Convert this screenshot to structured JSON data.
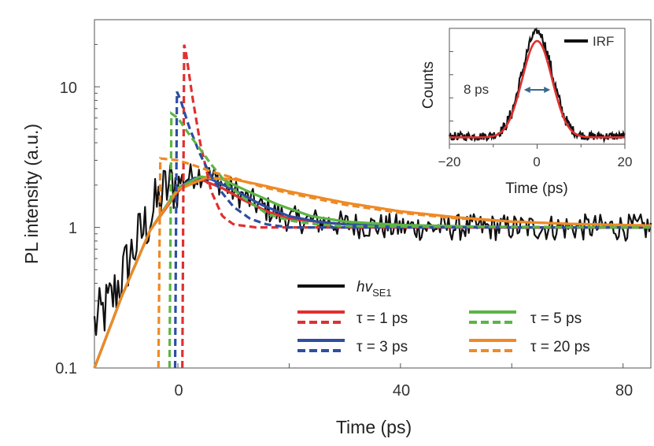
{
  "chart_data": [
    {
      "type": "line",
      "xlabel": "Time (ps)",
      "ylabel": "PL intensity (a.u.)",
      "xlim": [
        -15,
        85
      ],
      "ylim": [
        0.1,
        30
      ],
      "yscale": "log",
      "xticks": [
        0,
        40,
        80
      ],
      "xtick_labels": [
        "0",
        "40",
        "80"
      ],
      "yticks": [
        0.1,
        1,
        10
      ],
      "ytick_labels": [
        "0.1",
        "1",
        "10"
      ],
      "grid": false,
      "legend_position": "lower-right",
      "legend": {
        "data_label": "hv",
        "data_label_sub": "SE1",
        "tau_1": "τ = 1 ps",
        "tau_3": "τ = 3 ps",
        "tau_5": "τ = 5 ps",
        "tau_20": "τ = 20 ps"
      },
      "series": [
        {
          "key": "data",
          "color": "#111111",
          "style": "noisy",
          "x": [
            -15,
            -12,
            -10,
            -8,
            -6,
            -4,
            -2,
            0,
            2,
            4,
            6,
            10,
            15,
            20,
            30,
            40,
            60,
            85
          ],
          "y": [
            0.2,
            0.3,
            0.45,
            0.7,
            1.0,
            1.4,
            1.9,
            2.1,
            2.3,
            2.4,
            2.3,
            1.8,
            1.4,
            1.15,
            1.05,
            1.0,
            1.0,
            1.0
          ]
        },
        {
          "key": "tau1_fit",
          "color": "#e03030",
          "style": "solid",
          "x": [
            -15,
            -10,
            -5,
            0,
            2,
            4,
            8,
            12,
            16,
            20,
            30,
            40,
            60,
            85
          ],
          "y": [
            0.1,
            0.33,
            0.95,
            1.8,
            2.1,
            2.2,
            1.9,
            1.55,
            1.3,
            1.15,
            1.05,
            1.02,
            1.0,
            1.0
          ]
        },
        {
          "key": "tau3_fit",
          "color": "#2e4ea0",
          "style": "solid",
          "x": [
            -15,
            -10,
            -5,
            0,
            3,
            6,
            10,
            15,
            20,
            25,
            30,
            40,
            60,
            85
          ],
          "y": [
            0.1,
            0.33,
            0.95,
            1.9,
            2.25,
            2.2,
            1.85,
            1.45,
            1.2,
            1.1,
            1.05,
            1.02,
            1.0,
            1.0
          ]
        },
        {
          "key": "tau5_fit",
          "color": "#5cb544",
          "style": "solid",
          "x": [
            -15,
            -10,
            -5,
            0,
            4,
            8,
            12,
            18,
            24,
            30,
            40,
            60,
            85
          ],
          "y": [
            0.1,
            0.33,
            0.95,
            1.9,
            2.3,
            2.2,
            1.85,
            1.45,
            1.2,
            1.1,
            1.04,
            1.0,
            1.0
          ]
        },
        {
          "key": "tau20_fit",
          "color": "#ee8a25",
          "style": "solid",
          "x": [
            -15,
            -10,
            -5,
            0,
            5,
            10,
            15,
            20,
            30,
            40,
            50,
            60,
            70,
            85
          ],
          "y": [
            0.1,
            0.33,
            0.95,
            1.85,
            2.25,
            2.2,
            2.0,
            1.8,
            1.5,
            1.3,
            1.18,
            1.1,
            1.06,
            1.03
          ]
        },
        {
          "key": "tau1_dec",
          "color": "#e03030",
          "style": "dashed",
          "x": [
            0.8,
            1.0,
            1.5,
            2.5,
            4,
            6,
            8,
            10,
            14,
            20,
            85
          ],
          "y": [
            0.1,
            21,
            17,
            9,
            4,
            1.8,
            1.2,
            1.05,
            1.0,
            1.0,
            1.0
          ]
        },
        {
          "key": "tau3_dec",
          "color": "#2e4ea0",
          "style": "dashed",
          "x": [
            -0.5,
            -0.3,
            0.5,
            2,
            4,
            6,
            8,
            10,
            13,
            16,
            20,
            85
          ],
          "y": [
            0.1,
            9.5,
            8,
            5.2,
            3.3,
            2.3,
            1.75,
            1.4,
            1.15,
            1.05,
            1.0,
            1.0
          ]
        },
        {
          "key": "tau5_dec",
          "color": "#5cb544",
          "style": "dashed",
          "x": [
            -1.5,
            -1.3,
            0,
            2,
            4,
            6,
            9,
            12,
            16,
            20,
            25,
            30,
            85
          ],
          "y": [
            0.1,
            6.5,
            6.0,
            4.6,
            3.6,
            2.8,
            2.0,
            1.6,
            1.25,
            1.12,
            1.05,
            1.02,
            1.0
          ]
        },
        {
          "key": "tau20_dec",
          "color": "#ee8a25",
          "style": "dashed",
          "x": [
            -3.5,
            -3.3,
            0,
            3,
            6,
            10,
            15,
            20,
            30,
            40,
            50,
            60,
            70,
            85
          ],
          "y": [
            0.1,
            3.1,
            3.0,
            2.75,
            2.5,
            2.25,
            1.95,
            1.75,
            1.45,
            1.27,
            1.16,
            1.1,
            1.06,
            1.03
          ]
        }
      ]
    },
    {
      "type": "line",
      "xlabel": "Time (ps)",
      "ylabel": "Counts",
      "xlim": [
        -20,
        20
      ],
      "xticks": [
        -20,
        0,
        20
      ],
      "xtick_labels": [
        "−20",
        "0",
        "20"
      ],
      "legend_position": "top-right",
      "legend_label": "IRF",
      "annotation": "8 ps",
      "fwhm_arrow_x": [
        -3,
        3
      ],
      "series": [
        {
          "key": "irf_data",
          "color": "#111111",
          "style": "noisy",
          "center": 0,
          "fwhm": 8,
          "peak": 1.0,
          "baseline": 0.03
        },
        {
          "key": "irf_fit",
          "color": "#e03030",
          "style": "solid",
          "center": 0,
          "fwhm": 8,
          "peak": 0.92,
          "baseline": 0.02
        }
      ]
    }
  ]
}
